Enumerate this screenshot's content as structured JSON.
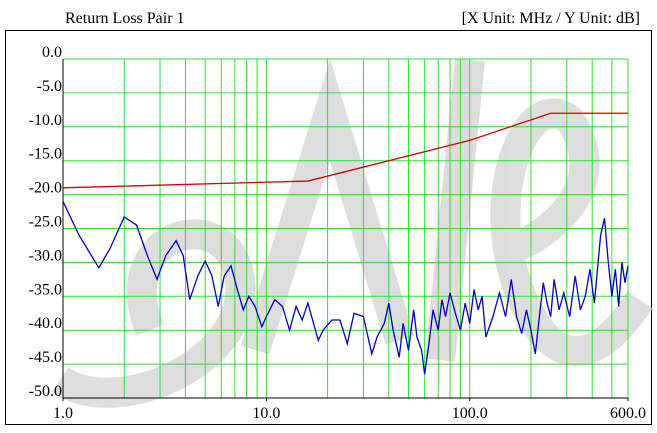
{
  "chart_data": {
    "type": "line",
    "title": "Return Loss Pair 1",
    "subtitle": "[X Unit: MHz / Y Unit: dB]",
    "log_x": true,
    "grid": true,
    "grid_color": "#33dd33",
    "xlim": [
      1,
      600
    ],
    "ylim": [
      -50,
      0
    ],
    "xticks": [
      {
        "value": 1,
        "label": "1.0"
      },
      {
        "value": 10,
        "label": "10.0"
      },
      {
        "value": 100,
        "label": "100.0"
      },
      {
        "value": 600,
        "label": "600.0"
      }
    ],
    "xgrid": [
      1,
      2,
      3,
      4,
      5,
      6,
      7,
      8,
      9,
      10,
      20,
      30,
      40,
      50,
      60,
      70,
      80,
      90,
      100,
      200,
      300,
      400,
      500,
      600
    ],
    "yticks": [
      {
        "value": 0,
        "label": "0.0"
      },
      {
        "value": -5,
        "label": "-5.0"
      },
      {
        "value": -10,
        "label": "-10.0"
      },
      {
        "value": -15,
        "label": "-15.0"
      },
      {
        "value": -20,
        "label": "-20.0"
      },
      {
        "value": -25,
        "label": "-25.0"
      },
      {
        "value": -30,
        "label": "-30.0"
      },
      {
        "value": -35,
        "label": "-35.0"
      },
      {
        "value": -40,
        "label": "-40.0"
      },
      {
        "value": -45,
        "label": "-45.0"
      },
      {
        "value": -50,
        "label": "-50.0"
      }
    ],
    "series": [
      {
        "color": "#d40000",
        "x": [
          1,
          16,
          100,
          250,
          600
        ],
        "values": [
          -19,
          -18,
          -12,
          -8,
          -8
        ]
      },
      {
        "color": "#0000c0",
        "x": [
          1.0,
          1.2,
          1.5,
          1.7,
          2.0,
          2.3,
          2.6,
          2.9,
          3.2,
          3.6,
          3.9,
          4.2,
          4.6,
          5.0,
          5.4,
          5.8,
          6.2,
          6.7,
          7.2,
          7.7,
          8.2,
          8.8,
          9.5,
          10,
          11,
          12,
          13,
          14,
          15,
          16,
          18,
          19,
          21,
          23,
          25,
          27,
          30,
          33,
          35,
          38,
          40,
          42,
          45,
          47,
          50,
          53,
          55,
          58,
          60,
          63,
          66,
          70,
          73,
          76,
          80,
          85,
          90,
          95,
          100,
          105,
          110,
          115,
          120,
          130,
          140,
          150,
          160,
          170,
          180,
          190,
          200,
          210,
          220,
          230,
          240,
          250,
          260,
          275,
          290,
          310,
          330,
          350,
          370,
          390,
          410,
          440,
          460,
          480,
          500,
          520,
          540,
          560,
          580,
          600
        ],
        "values": [
          -21,
          -26,
          -30.8,
          -28,
          -23.3,
          -24.5,
          -29,
          -32.5,
          -29,
          -26.8,
          -29,
          -35.5,
          -32,
          -29.8,
          -32,
          -36.5,
          -32,
          -30.5,
          -34,
          -37,
          -35,
          -36.5,
          -39.5,
          -38,
          -35.5,
          -36.5,
          -40,
          -36.5,
          -38.5,
          -36,
          -41.5,
          -40,
          -38.5,
          -38.5,
          -42,
          -37.5,
          -38,
          -43.5,
          -41,
          -39,
          -36,
          -40,
          -44,
          -39,
          -43,
          -37,
          -41,
          -43,
          -46.5,
          -42,
          -37,
          -40,
          -35.5,
          -38,
          -34.5,
          -37.5,
          -40,
          -36,
          -39,
          -34,
          -37,
          -35,
          -41,
          -38,
          -34.5,
          -38,
          -32.5,
          -38,
          -40.5,
          -37,
          -40,
          -43.5,
          -38,
          -33,
          -36,
          -38,
          -32.5,
          -37,
          -34.5,
          -38,
          -32,
          -37,
          -35,
          -31,
          -36,
          -26,
          -23.5,
          -30,
          -35,
          -31,
          -36.5,
          -30,
          -33,
          -30.5
        ]
      }
    ]
  }
}
